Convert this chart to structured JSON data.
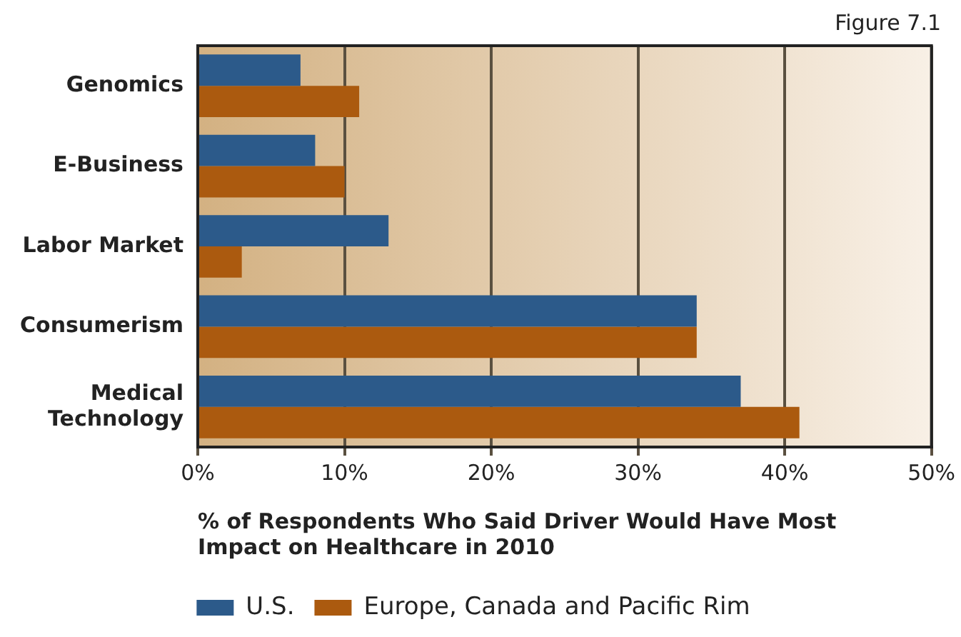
{
  "chart_data": {
    "type": "bar",
    "orientation": "horizontal",
    "categories": [
      "Genomics",
      "E-Business",
      "Labor Market",
      "Consumerism",
      "Medical Technology"
    ],
    "series": [
      {
        "name": "U.S.",
        "color": "#2c5a8a",
        "values": [
          7,
          8,
          13,
          34,
          37
        ]
      },
      {
        "name": "Europe, Canada and Pacific Rim",
        "color": "#ab5a0f",
        "values": [
          11,
          10,
          3,
          34,
          41
        ]
      }
    ],
    "xlim": [
      0,
      50
    ],
    "xticks": [
      {
        "value": 0,
        "label": "0%"
      },
      {
        "value": 10,
        "label": "10%"
      },
      {
        "value": 20,
        "label": "20%"
      },
      {
        "value": 30,
        "label": "30%"
      },
      {
        "value": 40,
        "label": "40%"
      },
      {
        "value": 50,
        "label": "50%"
      }
    ],
    "xlabel": "% of Respondents Who Said Driver Would Have Most Impact on Healthcare in 2010",
    "annotations": [
      "Figure 7.1"
    ],
    "grid": "x",
    "legend": "bottom"
  }
}
